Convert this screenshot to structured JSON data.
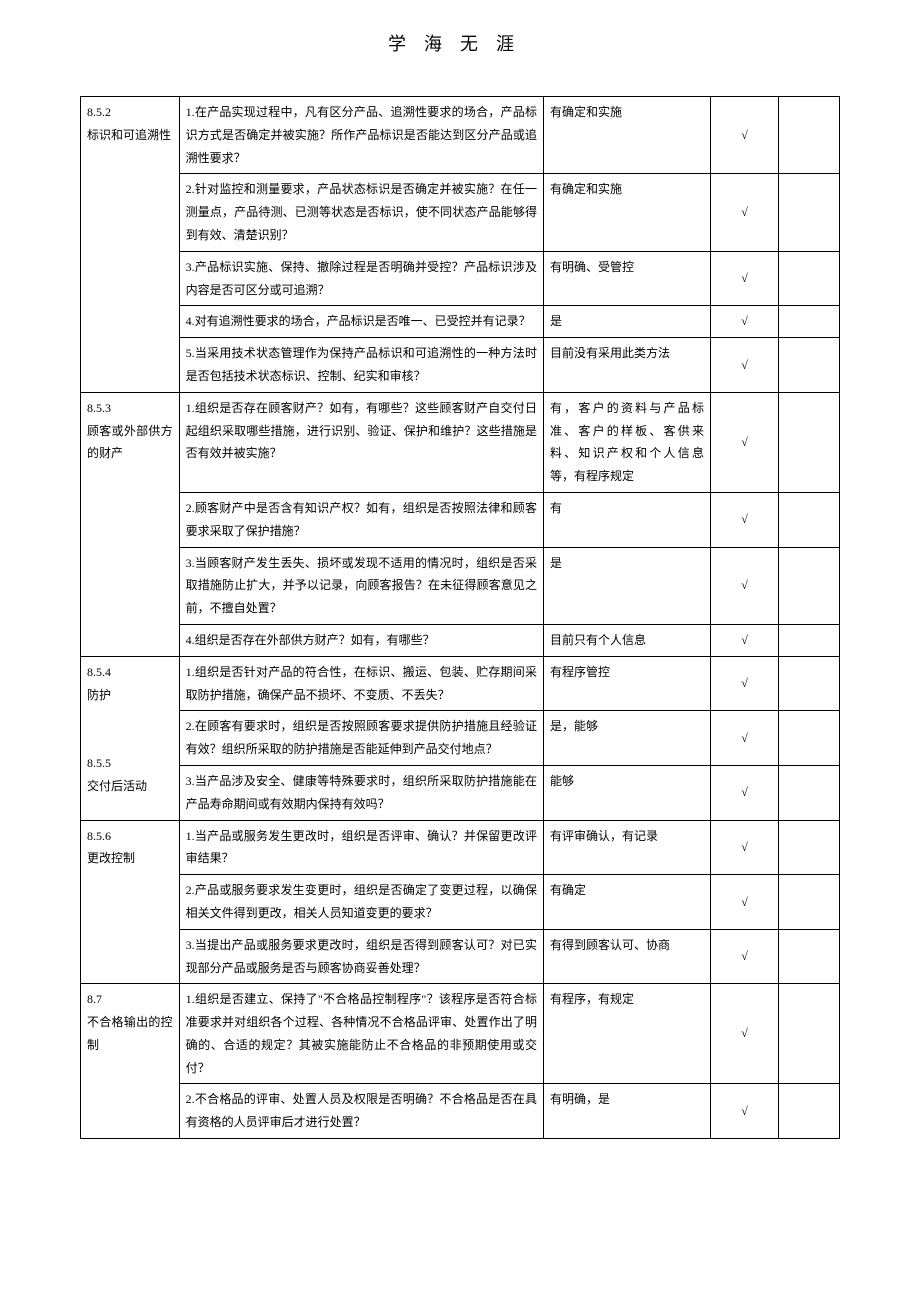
{
  "header": {
    "title": "学海无涯"
  },
  "checkMark": "√",
  "rows": [
    {
      "section": "8.5.2\n标识和可追溯性",
      "question": "1.在产品实现过程中，凡有区分产品、追溯性要求的场合，产品标识方式是否确定并被实施？所作产品标识是否能达到区分产品或追溯性要求？",
      "answer": "有确定和实施",
      "check": true,
      "rowspan": 5
    },
    {
      "question": "2.针对监控和测量要求，产品状态标识是否确定并被实施？在任一测量点，产品待测、已测等状态是否标识，使不同状态产品能够得到有效、清楚识别？",
      "answer": "有确定和实施",
      "check": true
    },
    {
      "question": "3.产品标识实施、保持、撤除过程是否明确并受控？产品标识涉及内容是否可区分或可追溯？",
      "answer": "有明确、受管控",
      "check": true
    },
    {
      "question": "4.对有追溯性要求的场合，产品标识是否唯一、已受控并有记录？",
      "answer": "是",
      "check": true
    },
    {
      "question": "5.当采用技术状态管理作为保持产品标识和可追溯性的一种方法时是否包括技术状态标识、控制、纪实和审核？",
      "answer": "目前没有采用此类方法",
      "check": true
    },
    {
      "section": "8.5.3\n顾客或外部供方的财产",
      "question": "1.组织是否存在顾客财产？如有，有哪些？这些顾客财产自交付日起组织采取哪些措施，进行识别、验证、保护和维护？这些措施是否有效并被实施？",
      "answer": "有，客户的资料与产品标准、客户的样板、客供来料、知识产权和个人信息等，有程序规定",
      "check": true,
      "rowspan": 4
    },
    {
      "question": "2.顾客财产中是否含有知识产权？如有，组织是否按照法律和顾客要求采取了保护措施？",
      "answer": "有",
      "check": true
    },
    {
      "question": "3.当顾客财产发生丢失、损坏或发现不适用的情况时，组织是否采取措施防止扩大，并予以记录，向顾客报告？在未征得顾客意见之前，不擅自处置？",
      "answer": "是",
      "check": true
    },
    {
      "question": "4.组织是否存在外部供方财产？如有，有哪些？",
      "answer": "目前只有个人信息",
      "check": true
    },
    {
      "section": "8.5.4\n防护\n\n\n8.5.5\n交付后活动",
      "question": "1.组织是否针对产品的符合性，在标识、搬运、包装、贮存期间采取防护措施，确保产品不损坏、不变质、不丢失？",
      "answer": "有程序管控",
      "check": true,
      "rowspan": 3
    },
    {
      "question": "2.在顾客有要求时，组织是否按照顾客要求提供防护措施且经验证有效？组织所采取的防护措施是否能延伸到产品交付地点？",
      "answer": "是，能够",
      "check": true
    },
    {
      "question": "3.当产品涉及安全、健康等特殊要求时，组织所采取防护措施能在产品寿命期间或有效期内保持有效吗？",
      "answer": "能够",
      "check": true
    },
    {
      "section": "8.5.6\n更改控制",
      "question": "1.当产品或服务发生更改时，组织是否评审、确认？并保留更改评审结果？",
      "answer": "有评审确认，有记录",
      "check": true,
      "rowspan": 3
    },
    {
      "question": "2.产品或服务要求发生变更时，组织是否确定了变更过程，以确保相关文件得到更改，相关人员知道变更的要求？",
      "answer": "有确定",
      "check": true
    },
    {
      "question": "3.当提出产品或服务要求更改时，组织是否得到顾客认可？对已实现部分产品或服务是否与顾客协商妥善处理？",
      "answer": "有得到顾客认可、协商",
      "check": true
    },
    {
      "section": "8.7\n不合格输出的控制",
      "question": "1.组织是否建立、保持了\"不合格品控制程序\"？该程序是否符合标准要求并对组织各个过程、各种情况不合格品评审、处置作出了明确的、合适的规定？其被实施能防止不合格品的非预期使用或交付？",
      "answer": "有程序，有规定",
      "check": true,
      "rowspan": 2
    },
    {
      "question": "2.不合格品的评审、处置人员及权限是否明确？不合格品是否在具有资格的人员评审后才进行处置？",
      "answer": "有明确，是",
      "check": true
    }
  ]
}
